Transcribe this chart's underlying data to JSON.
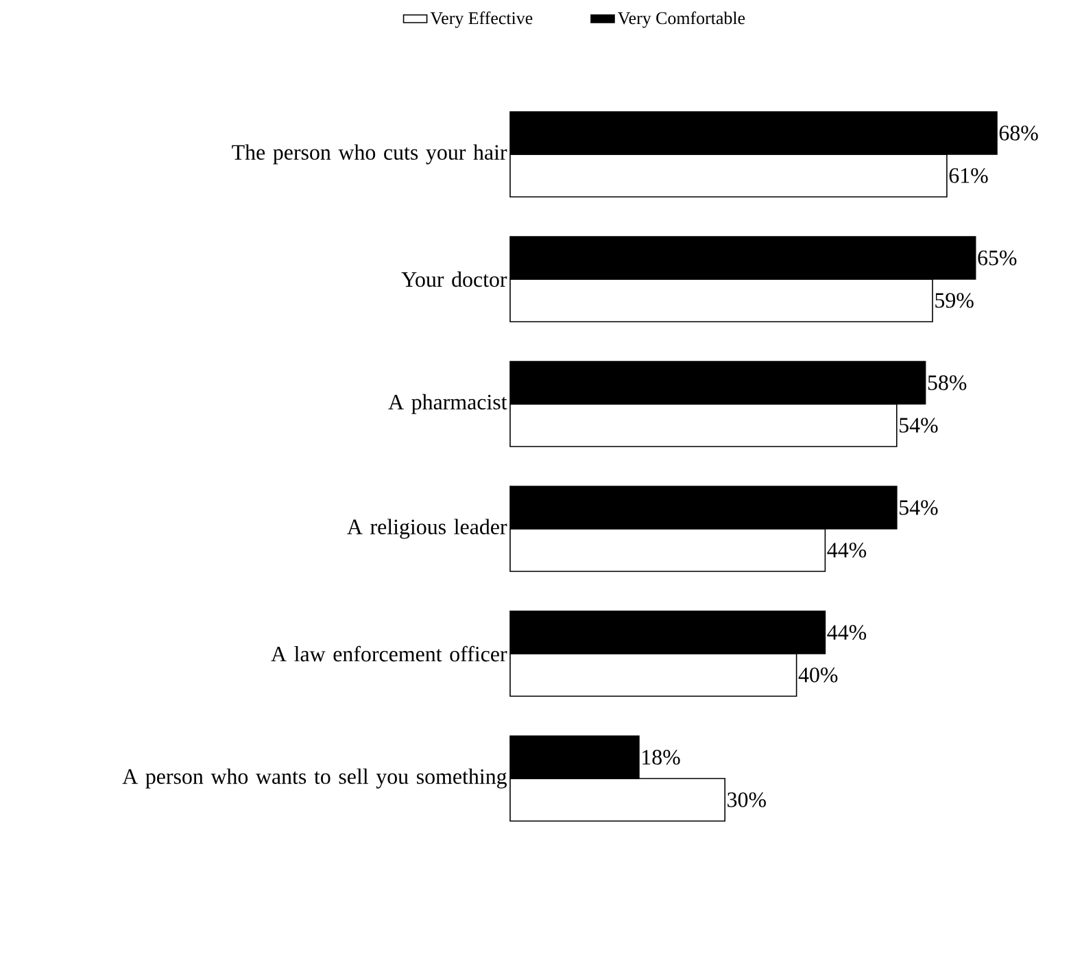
{
  "chart_data": {
    "type": "bar",
    "orientation": "horizontal",
    "categories": [
      "The person who cuts your hair",
      "Your doctor",
      "A pharmacist",
      "A religious leader",
      "A law enforcement officer",
      "A person who wants to sell you something"
    ],
    "series": [
      {
        "name": "Very Effective",
        "color": "#ffffff",
        "values": [
          61,
          59,
          54,
          44,
          40,
          30
        ],
        "value_labels": [
          "61%",
          "59%",
          "54%",
          "44%",
          "40%",
          "30%"
        ]
      },
      {
        "name": "Very Comfortable",
        "color": "#000000",
        "values": [
          68,
          65,
          58,
          54,
          44,
          18
        ],
        "value_labels": [
          "68%",
          "65%",
          "58%",
          "54%",
          "44%",
          "18%"
        ]
      }
    ],
    "legend": "top"
  }
}
